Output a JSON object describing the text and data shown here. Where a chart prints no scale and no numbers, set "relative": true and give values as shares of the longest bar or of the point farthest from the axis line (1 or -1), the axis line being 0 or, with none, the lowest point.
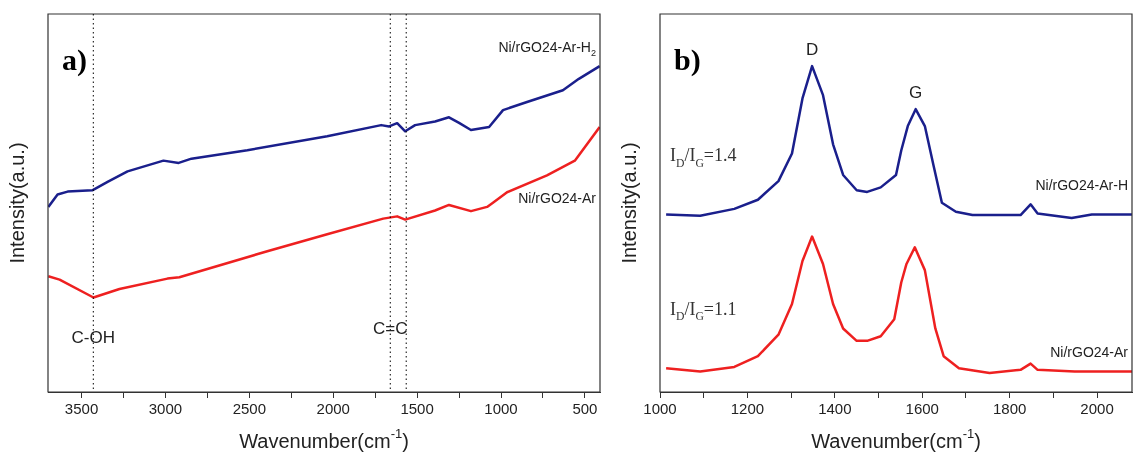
{
  "chart_data": [
    {
      "type": "line",
      "title": "a)",
      "xlabel": "Wavenumber(cm$^{-1}$)",
      "ylabel": "Intensity(a.u.)",
      "relative": true,
      "line_style": "solid",
      "xlim": [
        3700,
        410
      ],
      "xticks": [
        3500,
        {
          "value": 3250,
          "label": null
        },
        3000,
        {
          "value": 2750,
          "label": null
        },
        2500,
        {
          "value": 2250,
          "label": null
        },
        2000,
        {
          "value": 1750,
          "label": null
        },
        1500,
        {
          "value": 1250,
          "label": null
        },
        1000,
        {
          "value": 750,
          "label": null
        },
        500
      ],
      "series": [
        {
          "name": "Ni/rGO24-Ar-H$_{2}$",
          "color": "#1a1f8c",
          "x": [
            3698,
            3643,
            3583,
            3436,
            3345,
            3226,
            3012,
            2921,
            2845,
            2512,
            2036,
            1714,
            1667,
            1619,
            1571,
            1512,
            1393,
            1310,
            1250,
            1179,
            1071,
            988,
            845,
            631,
            536,
            412
          ],
          "values": [
            0.568,
            0.606,
            0.615,
            0.619,
            0.645,
            0.677,
            0.71,
            0.703,
            0.716,
            0.742,
            0.785,
            0.819,
            0.815,
            0.825,
            0.8,
            0.819,
            0.83,
            0.843,
            0.826,
            0.804,
            0.813,
            0.865,
            0.89,
            0.926,
            0.961,
            1.0
          ]
        },
        {
          "name": "Ni/rGO24-Ar",
          "color": "#ee2020",
          "x": [
            3698,
            3631,
            3429,
            3274,
            2988,
            2917,
            2393,
            2036,
            1702,
            1619,
            1571,
            1393,
            1310,
            1179,
            1083,
            1048,
            964,
            726,
            560,
            412
          ],
          "values": [
            0.355,
            0.345,
            0.29,
            0.316,
            0.348,
            0.352,
            0.432,
            0.484,
            0.532,
            0.539,
            0.529,
            0.557,
            0.574,
            0.555,
            0.568,
            0.581,
            0.613,
            0.665,
            0.71,
            0.813
          ]
        }
      ],
      "ref_lines": [
        {
          "axis": "x",
          "value": 3430,
          "line_style": "dotted",
          "color": "#000000"
        },
        {
          "axis": "x",
          "value": 1660,
          "line_style": "dotted",
          "color": "#000000"
        },
        {
          "axis": "x",
          "value": 1565,
          "line_style": "dotted",
          "color": "#000000"
        }
      ],
      "annotations": [
        {
          "text": "C-OH",
          "x": 3430,
          "y": 0.116
        },
        {
          "text": "C=C",
          "x": 1660,
          "y": 0.142
        }
      ]
    },
    {
      "type": "line",
      "title": "b)",
      "xlabel": "Wavenumber(cm$^{-1}$)",
      "ylabel": "Intensity(a.u.)",
      "relative": true,
      "line_style": "solid",
      "xlim": [
        1000,
        2080
      ],
      "xticks": [
        1000,
        {
          "value": 1100,
          "label": null
        },
        1200,
        {
          "value": 1300,
          "label": null
        },
        1400,
        {
          "value": 1500,
          "label": null
        },
        1600,
        {
          "value": 1700,
          "label": null
        },
        1800,
        {
          "value": 1900,
          "label": null
        },
        2000
      ],
      "series": [
        {
          "name": "Ni/rGO24-Ar-H",
          "color": "#1a1f8c",
          "x": [
            1014,
            1092,
            1170,
            1224,
            1271,
            1302,
            1326,
            1348,
            1373,
            1396,
            1419,
            1450,
            1474,
            1505,
            1540,
            1552,
            1567,
            1585,
            1606,
            1626,
            1645,
            1677,
            1715,
            1825,
            1848,
            1864,
            1942,
            1988,
            2080
          ],
          "values": [
            0.545,
            0.541,
            0.562,
            0.59,
            0.647,
            0.732,
            0.901,
            1.0,
            0.911,
            0.76,
            0.666,
            0.619,
            0.614,
            0.628,
            0.666,
            0.741,
            0.816,
            0.868,
            0.816,
            0.694,
            0.581,
            0.553,
            0.543,
            0.543,
            0.576,
            0.548,
            0.534,
            0.545,
            0.545
          ]
        },
        {
          "name": "Ni/rGO24-Ar",
          "color": "#ee2020",
          "x": [
            1014,
            1092,
            1170,
            1224,
            1271,
            1302,
            1326,
            1348,
            1373,
            1396,
            1419,
            1450,
            1474,
            1505,
            1536,
            1552,
            1564,
            1583,
            1606,
            1630,
            1649,
            1684,
            1754,
            1825,
            1848,
            1864,
            1949,
            2080
          ],
          "values": [
            0.073,
            0.063,
            0.077,
            0.11,
            0.176,
            0.27,
            0.402,
            0.477,
            0.393,
            0.27,
            0.195,
            0.157,
            0.157,
            0.171,
            0.223,
            0.336,
            0.393,
            0.444,
            0.374,
            0.195,
            0.11,
            0.073,
            0.058,
            0.068,
            0.087,
            0.068,
            0.063,
            0.063
          ]
        }
      ],
      "annotations": [
        {
          "text": "D",
          "x": 1348,
          "y": 1.0
        },
        {
          "text": "G",
          "x": 1585,
          "y": 0.868
        },
        "I$_{D}$/I$_{G}$=1.4",
        "I$_{D}$/I$_{G}$=1.1"
      ]
    }
  ]
}
